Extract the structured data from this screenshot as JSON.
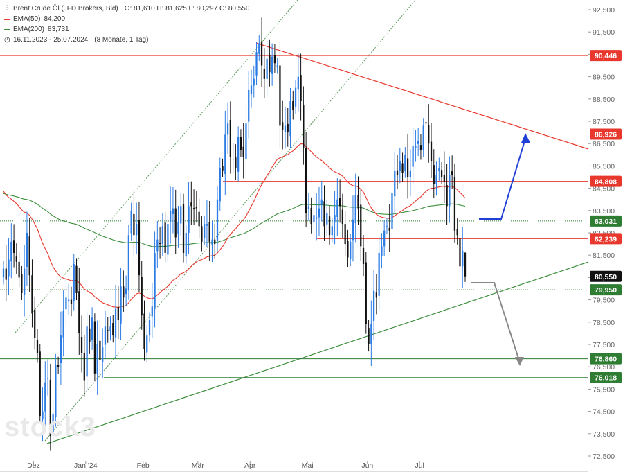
{
  "legend": {
    "title": "Brent Crude Öl (JFD Brokers, Bid)",
    "ohlc": "O: 81,610   H: 81,625   L: 80,297   C: 80,550",
    "ema50": {
      "label": "EMA(50)",
      "value": "84,200",
      "color": "#e8372c"
    },
    "ema200": {
      "label": "EMA(200)",
      "value": "83,731",
      "color": "#3d8f3d"
    },
    "range": "16.11.2023 - 25.07.2024",
    "range_detail": "(8 Monate, 1 Tag)",
    "chart_icon": "candlestick-icon",
    "clock_icon": "clock-icon"
  },
  "watermark": "stock3",
  "chart_data": {
    "type": "candlestick",
    "ylim": [
      72.0,
      92.8
    ],
    "y_ticks": [
      "72,500",
      "73,500",
      "74,500",
      "75,500",
      "76,500",
      "77,500",
      "78,500",
      "79,500",
      "80,500",
      "81,500",
      "82,500",
      "83,500",
      "84,500",
      "85,500",
      "86,500",
      "87,500",
      "88,500",
      "89,500",
      "90,500",
      "91,500",
      "92,500"
    ],
    "x_ticks": [
      {
        "label": "Dez",
        "date": "2023-12-01"
      },
      {
        "label": "Jan '24",
        "date": "2024-01-02"
      },
      {
        "label": "Feb",
        "date": "2024-02-01"
      },
      {
        "label": "Mär",
        "date": "2024-03-01"
      },
      {
        "label": "Apr",
        "date": "2024-04-01"
      },
      {
        "label": "Mai",
        "date": "2024-05-01"
      },
      {
        "label": "Jun",
        "date": "2024-06-03"
      },
      {
        "label": "Jul",
        "date": "2024-07-01"
      }
    ],
    "last_close": {
      "label": "80,550",
      "value": 80.55
    },
    "levels": [
      {
        "label": "90,446",
        "value": 90.446,
        "color": "#e8372c",
        "style": "solid"
      },
      {
        "label": "86,926",
        "value": 86.926,
        "color": "#e8372c",
        "style": "solid"
      },
      {
        "label": "84,808",
        "value": 84.808,
        "color": "#e8372c",
        "style": "solid"
      },
      {
        "label": "83,031",
        "value": 83.031,
        "color": "#2f7d32",
        "style": "dotted"
      },
      {
        "label": "82,239",
        "value": 82.239,
        "color": "#e8372c",
        "style": "solid"
      },
      {
        "label": "79,950",
        "value": 79.95,
        "color": "#2f7d32",
        "style": "dotted"
      },
      {
        "label": "76,860",
        "value": 76.86,
        "color": "#2f7d32",
        "style": "solid"
      },
      {
        "label": "76,018",
        "value": 76.018,
        "color": "#2f7d32",
        "style": "solid"
      }
    ],
    "series": [
      {
        "date": "2023-11-16",
        "close": 80.9
      },
      {
        "date": "2023-11-17",
        "close": 80.4
      },
      {
        "date": "2023-11-20",
        "close": 81.3
      },
      {
        "date": "2023-11-21",
        "close": 82.1
      },
      {
        "date": "2023-11-22",
        "close": 81.6
      },
      {
        "date": "2023-11-23",
        "close": 81.2
      },
      {
        "date": "2023-11-24",
        "close": 80.5
      },
      {
        "date": "2023-11-27",
        "close": 79.8
      },
      {
        "date": "2023-11-28",
        "close": 80.9
      },
      {
        "date": "2023-11-29",
        "close": 82.5
      },
      {
        "date": "2023-11-30",
        "close": 80.6
      },
      {
        "date": "2023-12-01",
        "close": 78.9
      },
      {
        "date": "2023-12-04",
        "close": 77.8
      },
      {
        "date": "2023-12-05",
        "close": 77.1
      },
      {
        "date": "2023-12-06",
        "close": 74.3
      },
      {
        "date": "2023-12-07",
        "close": 74.5
      },
      {
        "date": "2023-12-08",
        "close": 75.8
      },
      {
        "date": "2023-12-11",
        "close": 76.0
      },
      {
        "date": "2023-12-12",
        "close": 73.4
      },
      {
        "date": "2023-12-13",
        "close": 74.4
      },
      {
        "date": "2023-12-14",
        "close": 76.6
      },
      {
        "date": "2023-12-15",
        "close": 76.5
      },
      {
        "date": "2023-12-18",
        "close": 77.9
      },
      {
        "date": "2023-12-19",
        "close": 79.0
      },
      {
        "date": "2023-12-20",
        "close": 79.6
      },
      {
        "date": "2023-12-21",
        "close": 79.5
      },
      {
        "date": "2023-12-22",
        "close": 79.3
      },
      {
        "date": "2023-12-26",
        "close": 81.1
      },
      {
        "date": "2023-12-27",
        "close": 79.8
      },
      {
        "date": "2023-12-28",
        "close": 78.0
      },
      {
        "date": "2023-12-29",
        "close": 77.1
      },
      {
        "date": "2024-01-02",
        "close": 75.9
      },
      {
        "date": "2024-01-03",
        "close": 78.3
      },
      {
        "date": "2024-01-04",
        "close": 77.6
      },
      {
        "date": "2024-01-05",
        "close": 78.7
      },
      {
        "date": "2024-01-08",
        "close": 76.2
      },
      {
        "date": "2024-01-09",
        "close": 77.5
      },
      {
        "date": "2024-01-10",
        "close": 76.8
      },
      {
        "date": "2024-01-11",
        "close": 77.4
      },
      {
        "date": "2024-01-12",
        "close": 78.3
      },
      {
        "date": "2024-01-15",
        "close": 78.1
      },
      {
        "date": "2024-01-16",
        "close": 78.3
      },
      {
        "date": "2024-01-17",
        "close": 77.9
      },
      {
        "date": "2024-01-18",
        "close": 79.1
      },
      {
        "date": "2024-01-19",
        "close": 78.6
      },
      {
        "date": "2024-01-22",
        "close": 80.1
      },
      {
        "date": "2024-01-23",
        "close": 79.6
      },
      {
        "date": "2024-01-24",
        "close": 80.0
      },
      {
        "date": "2024-01-25",
        "close": 82.4
      },
      {
        "date": "2024-01-26",
        "close": 83.5
      },
      {
        "date": "2024-01-29",
        "close": 82.4
      },
      {
        "date": "2024-01-30",
        "close": 82.9
      },
      {
        "date": "2024-01-31",
        "close": 80.6
      },
      {
        "date": "2024-02-01",
        "close": 78.8
      },
      {
        "date": "2024-02-02",
        "close": 77.3
      },
      {
        "date": "2024-02-05",
        "close": 77.9
      },
      {
        "date": "2024-02-06",
        "close": 78.6
      },
      {
        "date": "2024-02-07",
        "close": 79.2
      },
      {
        "date": "2024-02-08",
        "close": 81.6
      },
      {
        "date": "2024-02-09",
        "close": 82.2
      },
      {
        "date": "2024-02-12",
        "close": 82.0
      },
      {
        "date": "2024-02-13",
        "close": 82.8
      },
      {
        "date": "2024-02-14",
        "close": 81.6
      },
      {
        "date": "2024-02-15",
        "close": 82.9
      },
      {
        "date": "2024-02-16",
        "close": 83.5
      },
      {
        "date": "2024-02-19",
        "close": 83.6
      },
      {
        "date": "2024-02-20",
        "close": 82.3
      },
      {
        "date": "2024-02-21",
        "close": 83.0
      },
      {
        "date": "2024-02-22",
        "close": 83.7
      },
      {
        "date": "2024-02-23",
        "close": 81.6
      },
      {
        "date": "2024-02-26",
        "close": 82.5
      },
      {
        "date": "2024-02-27",
        "close": 83.7
      },
      {
        "date": "2024-02-28",
        "close": 83.7
      },
      {
        "date": "2024-02-29",
        "close": 83.6
      },
      {
        "date": "2024-03-01",
        "close": 83.6
      },
      {
        "date": "2024-03-04",
        "close": 82.8
      },
      {
        "date": "2024-03-05",
        "close": 82.1
      },
      {
        "date": "2024-03-06",
        "close": 82.9
      },
      {
        "date": "2024-03-07",
        "close": 82.9
      },
      {
        "date": "2024-03-08",
        "close": 82.1
      },
      {
        "date": "2024-03-11",
        "close": 82.2
      },
      {
        "date": "2024-03-12",
        "close": 82.0
      },
      {
        "date": "2024-03-13",
        "close": 84.0
      },
      {
        "date": "2024-03-14",
        "close": 85.4
      },
      {
        "date": "2024-03-15",
        "close": 85.3
      },
      {
        "date": "2024-03-18",
        "close": 86.9
      },
      {
        "date": "2024-03-19",
        "close": 87.4
      },
      {
        "date": "2024-03-20",
        "close": 85.9
      },
      {
        "date": "2024-03-21",
        "close": 85.8
      },
      {
        "date": "2024-03-22",
        "close": 85.4
      },
      {
        "date": "2024-03-25",
        "close": 86.8
      },
      {
        "date": "2024-03-26",
        "close": 86.2
      },
      {
        "date": "2024-03-27",
        "close": 85.9
      },
      {
        "date": "2024-03-28",
        "close": 87.4
      },
      {
        "date": "2024-04-01",
        "close": 88.9
      },
      {
        "date": "2024-04-02",
        "close": 89.1
      },
      {
        "date": "2024-04-03",
        "close": 89.4
      },
      {
        "date": "2024-04-04",
        "close": 90.6
      },
      {
        "date": "2024-04-05",
        "close": 91.0
      },
      {
        "date": "2024-04-08",
        "close": 90.0
      },
      {
        "date": "2024-04-09",
        "close": 89.4
      },
      {
        "date": "2024-04-10",
        "close": 90.3
      },
      {
        "date": "2024-04-11",
        "close": 89.7
      },
      {
        "date": "2024-04-12",
        "close": 90.4
      },
      {
        "date": "2024-04-15",
        "close": 90.1
      },
      {
        "date": "2024-04-16",
        "close": 90.0
      },
      {
        "date": "2024-04-17",
        "close": 87.3
      },
      {
        "date": "2024-04-18",
        "close": 87.1
      },
      {
        "date": "2024-04-19",
        "close": 87.3
      },
      {
        "date": "2024-04-22",
        "close": 87.0
      },
      {
        "date": "2024-04-23",
        "close": 88.4
      },
      {
        "date": "2024-04-24",
        "close": 88.0
      },
      {
        "date": "2024-04-25",
        "close": 89.0
      },
      {
        "date": "2024-04-26",
        "close": 89.5
      },
      {
        "date": "2024-04-29",
        "close": 88.4
      },
      {
        "date": "2024-04-30",
        "close": 86.3
      },
      {
        "date": "2024-05-01",
        "close": 83.4
      },
      {
        "date": "2024-05-02",
        "close": 83.7
      },
      {
        "date": "2024-05-03",
        "close": 82.9
      },
      {
        "date": "2024-05-06",
        "close": 83.3
      },
      {
        "date": "2024-05-07",
        "close": 83.2
      },
      {
        "date": "2024-05-08",
        "close": 83.6
      },
      {
        "date": "2024-05-09",
        "close": 84.0
      },
      {
        "date": "2024-05-10",
        "close": 82.8
      },
      {
        "date": "2024-05-13",
        "close": 83.4
      },
      {
        "date": "2024-05-14",
        "close": 82.4
      },
      {
        "date": "2024-05-15",
        "close": 82.8
      },
      {
        "date": "2024-05-16",
        "close": 83.3
      },
      {
        "date": "2024-05-17",
        "close": 84.0
      },
      {
        "date": "2024-05-20",
        "close": 83.7
      },
      {
        "date": "2024-05-21",
        "close": 82.9
      },
      {
        "date": "2024-05-22",
        "close": 82.0
      },
      {
        "date": "2024-05-23",
        "close": 81.4
      },
      {
        "date": "2024-05-24",
        "close": 82.1
      },
      {
        "date": "2024-05-27",
        "close": 83.1
      },
      {
        "date": "2024-05-28",
        "close": 84.2
      },
      {
        "date": "2024-05-29",
        "close": 83.6
      },
      {
        "date": "2024-05-30",
        "close": 81.9
      },
      {
        "date": "2024-05-31",
        "close": 81.1
      },
      {
        "date": "2024-06-03",
        "close": 78.4
      },
      {
        "date": "2024-06-04",
        "close": 77.5
      },
      {
        "date": "2024-06-05",
        "close": 78.4
      },
      {
        "date": "2024-06-06",
        "close": 79.9
      },
      {
        "date": "2024-06-07",
        "close": 79.6
      },
      {
        "date": "2024-06-10",
        "close": 81.6
      },
      {
        "date": "2024-06-11",
        "close": 81.9
      },
      {
        "date": "2024-06-12",
        "close": 82.6
      },
      {
        "date": "2024-06-13",
        "close": 82.8
      },
      {
        "date": "2024-06-14",
        "close": 82.6
      },
      {
        "date": "2024-06-17",
        "close": 84.3
      },
      {
        "date": "2024-06-18",
        "close": 85.3
      },
      {
        "date": "2024-06-19",
        "close": 85.1
      },
      {
        "date": "2024-06-20",
        "close": 85.7
      },
      {
        "date": "2024-06-21",
        "close": 85.2
      },
      {
        "date": "2024-06-24",
        "close": 86.0
      },
      {
        "date": "2024-06-25",
        "close": 85.0
      },
      {
        "date": "2024-06-26",
        "close": 85.3
      },
      {
        "date": "2024-06-27",
        "close": 86.4
      },
      {
        "date": "2024-06-28",
        "close": 86.4
      },
      {
        "date": "2024-07-01",
        "close": 86.6
      },
      {
        "date": "2024-07-02",
        "close": 86.2
      },
      {
        "date": "2024-07-03",
        "close": 87.3
      },
      {
        "date": "2024-07-04",
        "close": 87.4
      },
      {
        "date": "2024-07-05",
        "close": 86.5
      },
      {
        "date": "2024-07-08",
        "close": 85.7
      },
      {
        "date": "2024-07-09",
        "close": 84.7
      },
      {
        "date": "2024-07-10",
        "close": 85.1
      },
      {
        "date": "2024-07-11",
        "close": 85.4
      },
      {
        "date": "2024-07-12",
        "close": 85.0
      },
      {
        "date": "2024-07-15",
        "close": 84.8
      },
      {
        "date": "2024-07-16",
        "close": 83.7
      },
      {
        "date": "2024-07-17",
        "close": 85.1
      },
      {
        "date": "2024-07-18",
        "close": 85.1
      },
      {
        "date": "2024-07-19",
        "close": 82.6
      },
      {
        "date": "2024-07-22",
        "close": 82.4
      },
      {
        "date": "2024-07-23",
        "close": 81.0
      },
      {
        "date": "2024-07-24",
        "close": 81.7
      },
      {
        "date": "2024-07-25",
        "close": 80.55
      }
    ]
  }
}
